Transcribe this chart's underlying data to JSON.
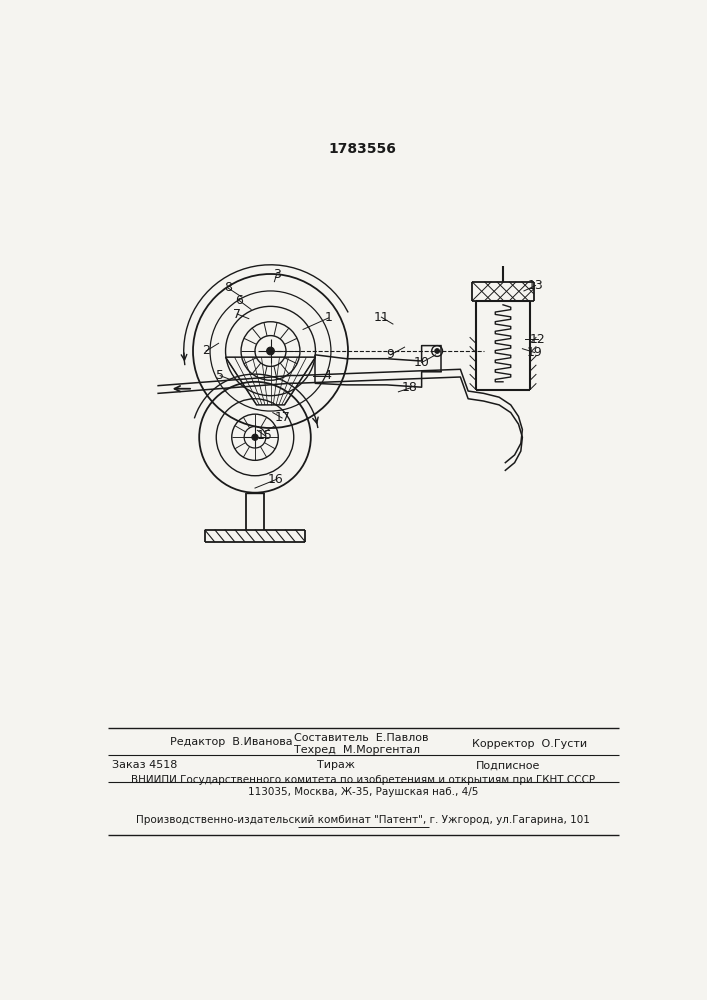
{
  "patent_number": "1783556",
  "background_color": "#f5f4f0",
  "line_color": "#1a1a1a",
  "editor_line": "Редактор  В.Иванова",
  "composer_line": "Составитель  Е.Павлов",
  "techred_line": "Техред  М.Моргентал",
  "corrector_line": "Корректор  О.Густи",
  "order_line": "Заказ 4518",
  "tirazh_line": "Тираж",
  "podpisnoe_line": "Подписное",
  "vniiipi_line": "ВНИИПИ Государственного комитета по изобретениям и открытиям при ГКНТ СССР",
  "address_line": "113035, Москва, Ж-35, Раушская наб., 4/5",
  "factory_line": "Производственно-издательский комбинат \"Патент\", г. Ужгород, ул.Гагарина, 101"
}
